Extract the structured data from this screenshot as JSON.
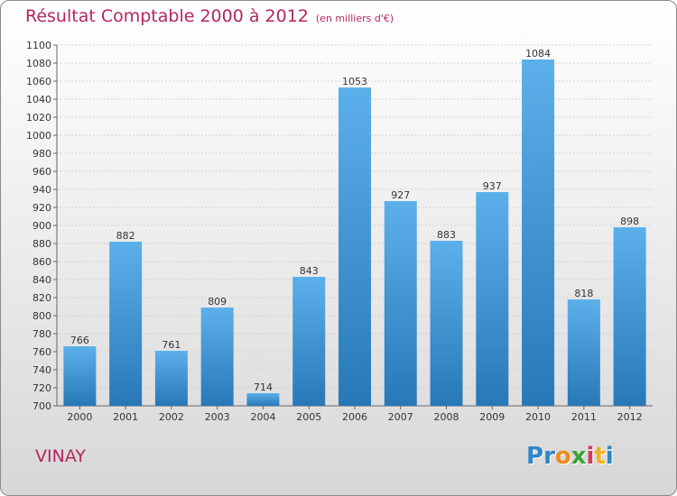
{
  "title": {
    "main": "Résultat Comptable 2000 à 2012",
    "unit": "(en milliers d'€)"
  },
  "city": "VINAY",
  "logo": {
    "text": "Proxiti",
    "colors": [
      "#2e86c8",
      "#2e86c8",
      "#f08a1c",
      "#3aa335",
      "#d43a5a",
      "#f2b31c",
      "#2e86c8"
    ]
  },
  "colors": {
    "bar_light": "#5cb0ea",
    "bar_dark": "#2878b8",
    "accent": "#b5265f"
  },
  "chart_data": {
    "type": "bar",
    "title": "Résultat Comptable 2000 à 2012",
    "xlabel": "",
    "ylabel": "(en milliers d'€)",
    "categories": [
      "2000",
      "2001",
      "2002",
      "2003",
      "2004",
      "2005",
      "2006",
      "2007",
      "2008",
      "2009",
      "2010",
      "2011",
      "2012"
    ],
    "values": [
      766,
      882,
      761,
      809,
      714,
      843,
      1053,
      927,
      883,
      937,
      1084,
      818,
      898
    ],
    "ylim": [
      700,
      1100
    ],
    "ytick_step": 20,
    "grid": true,
    "data_labels": true
  }
}
